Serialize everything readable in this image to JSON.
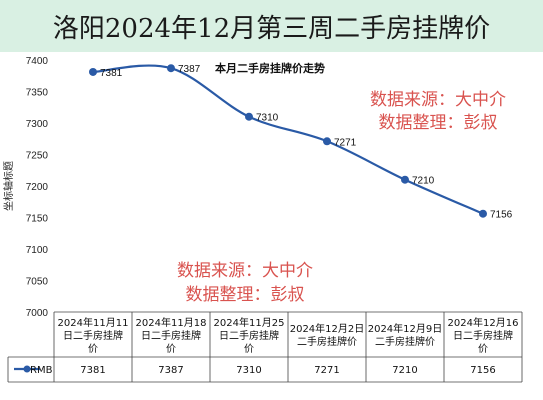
{
  "header": {
    "title": "洛阳2024年12月第三周二手房挂牌价"
  },
  "watermark": {
    "line1": "数据来源：大中介",
    "line2": "数据整理：彭叔"
  },
  "chart_data": {
    "type": "line",
    "title": "本月二手房挂牌价走势",
    "ylabel": "坐标轴标题",
    "ylim": [
      7000,
      7400
    ],
    "yticks": [
      7000,
      7050,
      7100,
      7150,
      7200,
      7250,
      7300,
      7350,
      7400
    ],
    "categories": [
      "2024年11月11日二手房挂牌价",
      "2024年11月18日二手房挂牌价",
      "2024年11月25日二手房挂牌价",
      "2024年12月2日二手房挂牌价",
      "2024年12月9日二手房挂牌价",
      "2024年12月16日二手房挂牌价"
    ],
    "category_lines": [
      [
        "2024年11月11",
        "日二手房挂牌",
        "价"
      ],
      [
        "2024年11月18",
        "日二手房挂牌",
        "价"
      ],
      [
        "2024年11月25",
        "日二手房挂牌",
        "价"
      ],
      [
        "2024年12月2日",
        "二手房挂牌价"
      ],
      [
        "2024年12月9日",
        "二手房挂牌价"
      ],
      [
        "2024年12月16",
        "日二手房挂牌",
        "价"
      ]
    ],
    "series": [
      {
        "name": "RMB",
        "values": [
          7381,
          7387,
          7310,
          7271,
          7210,
          7156
        ]
      }
    ],
    "line_color": "#2a5aa6",
    "grid": false,
    "data_table": true
  }
}
